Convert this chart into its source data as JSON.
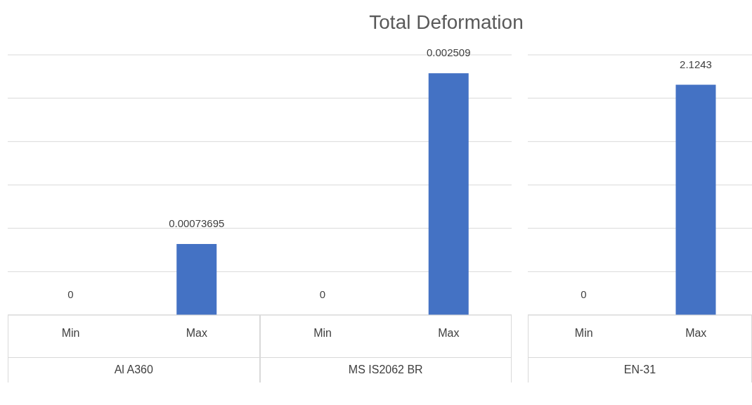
{
  "chart_data": [
    {
      "type": "bar",
      "title": "Total Deformation",
      "categories": [
        "Min",
        "Max",
        "Min",
        "Max"
      ],
      "values": [
        0,
        0.00073695,
        0,
        0.002509
      ],
      "color": "#4472c4",
      "data_labels": true,
      "grid": "y",
      "tick_labels": "x",
      "annotations": [
        "Al A360",
        "MS IS2062 BR"
      ]
    },
    {
      "type": "bar",
      "categories": [
        "Min",
        "Max"
      ],
      "values": [
        0,
        2.1243
      ],
      "color": "#4472c4",
      "data_labels": true,
      "grid": "y",
      "tick_labels": "x",
      "annotations": [
        "EN-31"
      ]
    }
  ]
}
